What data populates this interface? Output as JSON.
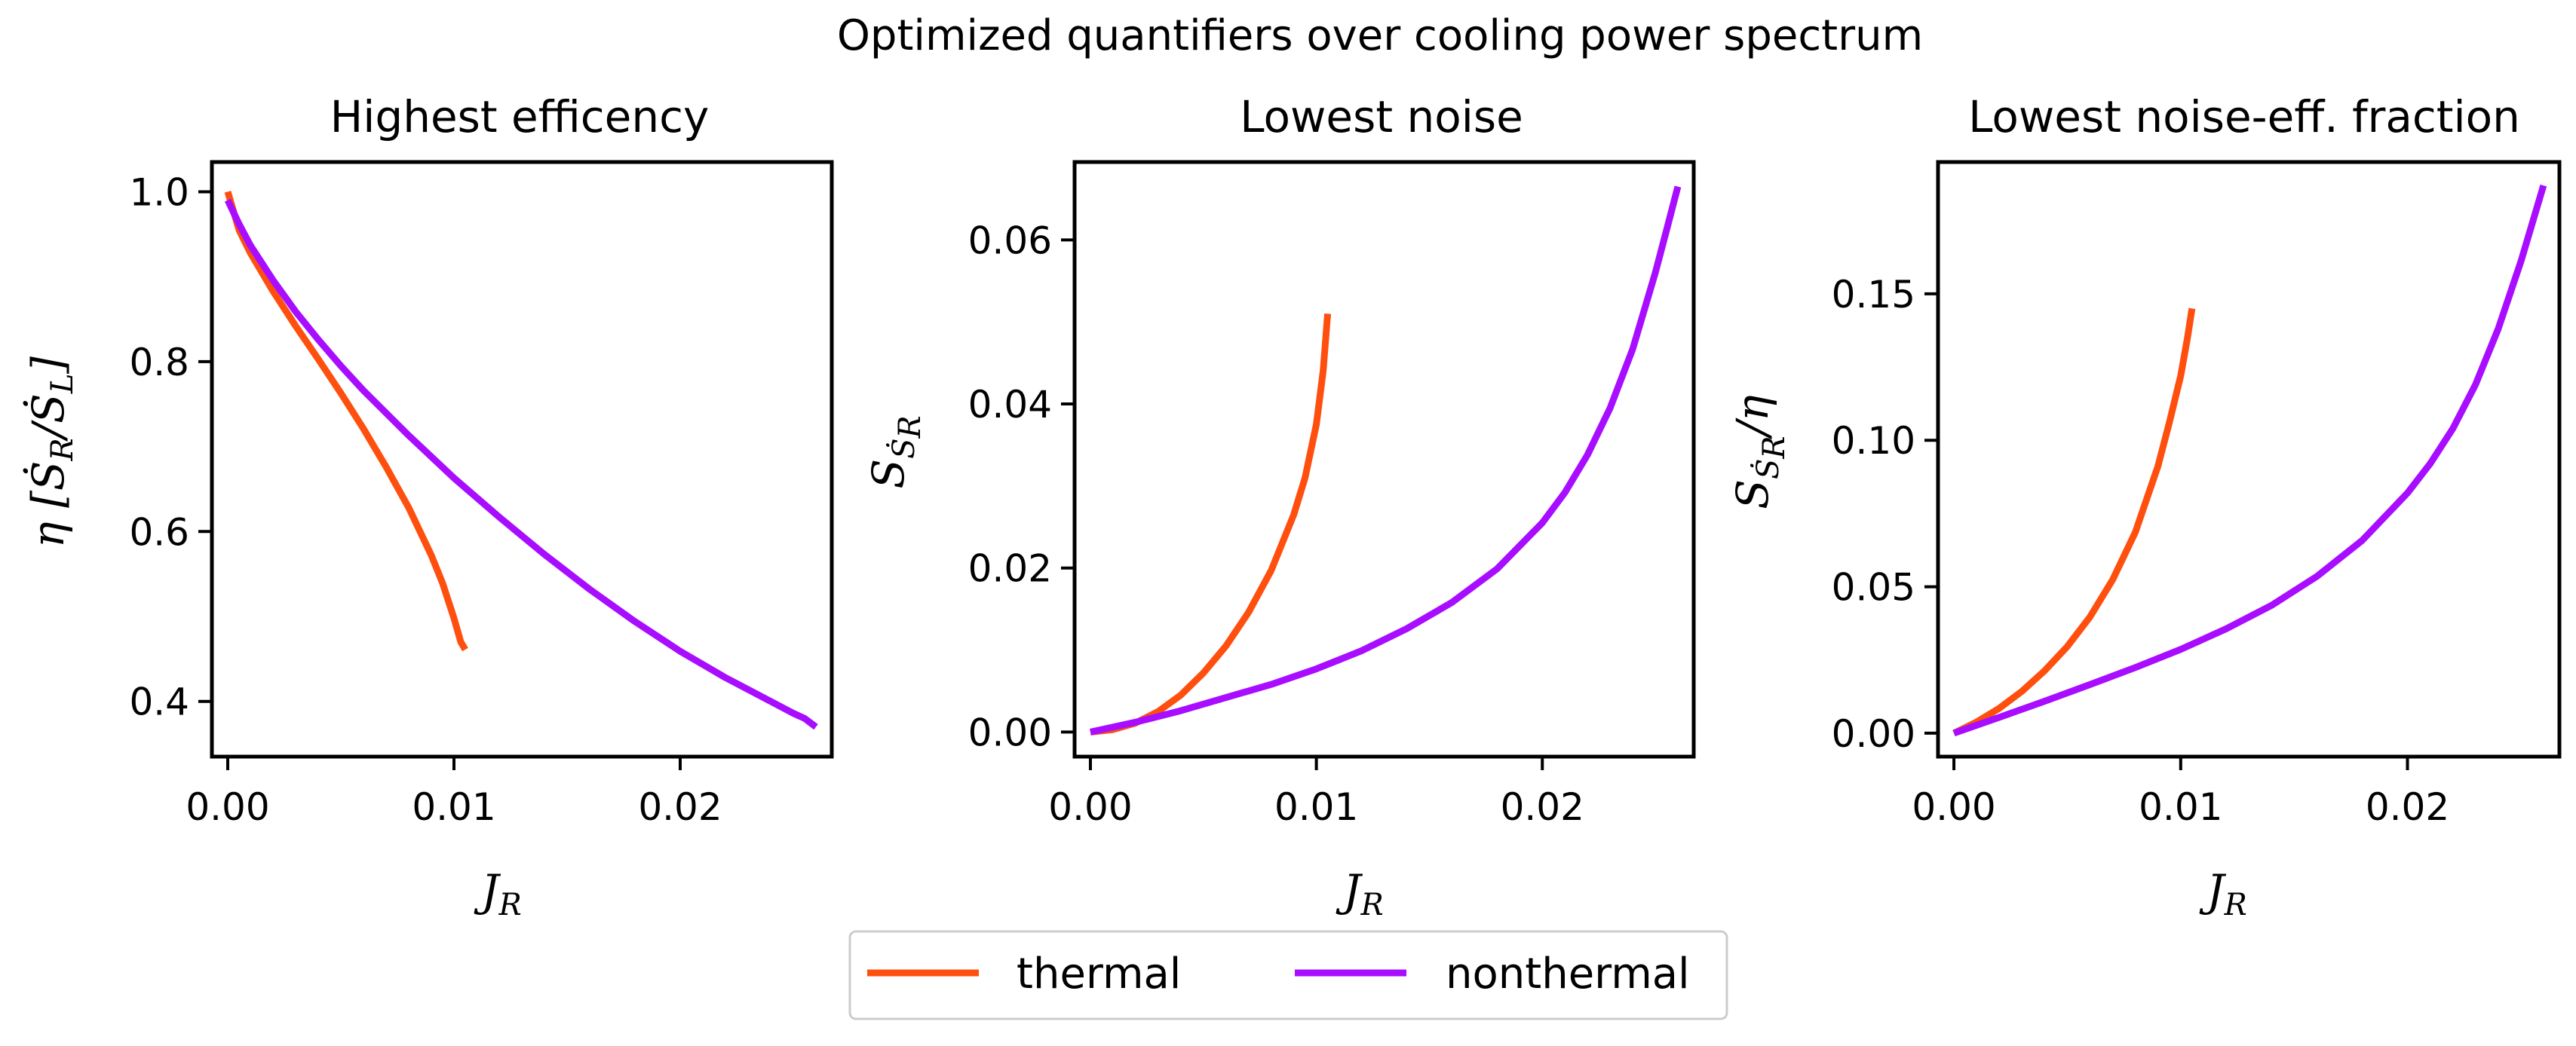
{
  "figure": {
    "title": "Optimized quantifiers over cooling power spectrum"
  },
  "legend": {
    "placement": "bottom-center",
    "items": [
      {
        "label": "thermal",
        "color": "#ff4f0f"
      },
      {
        "label": "nonthermal",
        "color": "#a80dff"
      }
    ]
  },
  "chart_data": [
    {
      "type": "line",
      "title": "Highest efficency",
      "xlabel": "J_R",
      "ylabel": "η [Ṡ_R/Ṡ_L]",
      "xlim": [
        -0.0007,
        0.0267
      ],
      "ylim": [
        0.335,
        1.035
      ],
      "xticks": [
        0.0,
        0.01,
        0.02
      ],
      "xtick_labels": [
        "0.00",
        "0.01",
        "0.02"
      ],
      "yticks": [
        0.4,
        0.6,
        0.8,
        1.0
      ],
      "ytick_labels": [
        "0.4",
        "0.6",
        "0.8",
        "1.0"
      ],
      "grid": false,
      "series": [
        {
          "name": "thermal",
          "color": "#ff4f0f",
          "x": [
            0.0,
            0.0005,
            0.001,
            0.002,
            0.003,
            0.004,
            0.005,
            0.006,
            0.007,
            0.008,
            0.009,
            0.0095,
            0.01,
            0.0103,
            0.0105
          ],
          "y": [
            1.0,
            0.955,
            0.928,
            0.883,
            0.842,
            0.803,
            0.763,
            0.721,
            0.676,
            0.628,
            0.572,
            0.539,
            0.498,
            0.47,
            0.461
          ]
        },
        {
          "name": "nonthermal",
          "color": "#a80dff",
          "x": [
            0.0,
            0.0005,
            0.001,
            0.002,
            0.003,
            0.004,
            0.005,
            0.006,
            0.008,
            0.01,
            0.012,
            0.014,
            0.016,
            0.018,
            0.02,
            0.022,
            0.024,
            0.025,
            0.0255,
            0.026
          ],
          "y": [
            0.99,
            0.962,
            0.937,
            0.896,
            0.859,
            0.826,
            0.795,
            0.766,
            0.713,
            0.663,
            0.617,
            0.573,
            0.532,
            0.494,
            0.459,
            0.428,
            0.4,
            0.386,
            0.38,
            0.37
          ]
        }
      ]
    },
    {
      "type": "line",
      "title": "Lowest noise",
      "xlabel": "J_R",
      "ylabel": "S_(Ṡ_R)",
      "xlim": [
        -0.0007,
        0.0267
      ],
      "ylim": [
        -0.003,
        0.0695
      ],
      "xticks": [
        0.0,
        0.01,
        0.02
      ],
      "xtick_labels": [
        "0.00",
        "0.01",
        "0.02"
      ],
      "yticks": [
        0.0,
        0.02,
        0.04,
        0.06
      ],
      "ytick_labels": [
        "0.00",
        "0.02",
        "0.04",
        "0.06"
      ],
      "grid": false,
      "series": [
        {
          "name": "thermal",
          "color": "#ff4f0f",
          "x": [
            0.0,
            0.001,
            0.002,
            0.003,
            0.004,
            0.005,
            0.006,
            0.007,
            0.008,
            0.009,
            0.0095,
            0.01,
            0.0103,
            0.0105
          ],
          "y": [
            0.0,
            0.0003,
            0.0011,
            0.0025,
            0.0045,
            0.0072,
            0.0105,
            0.0146,
            0.0197,
            0.0265,
            0.031,
            0.0375,
            0.044,
            0.051
          ]
        },
        {
          "name": "nonthermal",
          "color": "#a80dff",
          "x": [
            0.0,
            0.002,
            0.004,
            0.006,
            0.008,
            0.01,
            0.012,
            0.014,
            0.016,
            0.018,
            0.02,
            0.021,
            0.022,
            0.023,
            0.024,
            0.025,
            0.0255,
            0.026
          ],
          "y": [
            0.0,
            0.0012,
            0.0026,
            0.0042,
            0.0058,
            0.0077,
            0.0099,
            0.0126,
            0.0158,
            0.0199,
            0.0255,
            0.0292,
            0.0338,
            0.0395,
            0.0467,
            0.056,
            0.0612,
            0.0665
          ]
        }
      ]
    },
    {
      "type": "line",
      "title": "Lowest noise-eff. fraction",
      "xlabel": "J_R",
      "ylabel": "S_(Ṡ_R)/η",
      "xlim": [
        -0.0007,
        0.0267
      ],
      "ylim": [
        -0.008,
        0.195
      ],
      "xticks": [
        0.0,
        0.01,
        0.02
      ],
      "xtick_labels": [
        "0.00",
        "0.01",
        "0.02"
      ],
      "yticks": [
        0.0,
        0.05,
        0.1,
        0.15
      ],
      "ytick_labels": [
        "0.00",
        "0.05",
        "0.10",
        "0.15"
      ],
      "grid": false,
      "series": [
        {
          "name": "thermal",
          "color": "#ff4f0f",
          "x": [
            0.0,
            0.001,
            0.002,
            0.003,
            0.004,
            0.005,
            0.006,
            0.007,
            0.008,
            0.009,
            0.0095,
            0.01,
            0.0103,
            0.0105
          ],
          "y": [
            0.0,
            0.0038,
            0.0085,
            0.0143,
            0.0213,
            0.0296,
            0.0397,
            0.0524,
            0.0686,
            0.0912,
            0.106,
            0.122,
            0.135,
            0.145
          ]
        },
        {
          "name": "nonthermal",
          "color": "#a80dff",
          "x": [
            0.0,
            0.002,
            0.004,
            0.006,
            0.008,
            0.01,
            0.012,
            0.014,
            0.016,
            0.018,
            0.02,
            0.021,
            0.022,
            0.023,
            0.024,
            0.025,
            0.0255,
            0.026
          ],
          "y": [
            0.0,
            0.0054,
            0.0109,
            0.0166,
            0.0224,
            0.0286,
            0.0356,
            0.0436,
            0.0535,
            0.0658,
            0.082,
            0.092,
            0.104,
            0.119,
            0.138,
            0.161,
            0.174,
            0.187
          ]
        }
      ]
    }
  ]
}
